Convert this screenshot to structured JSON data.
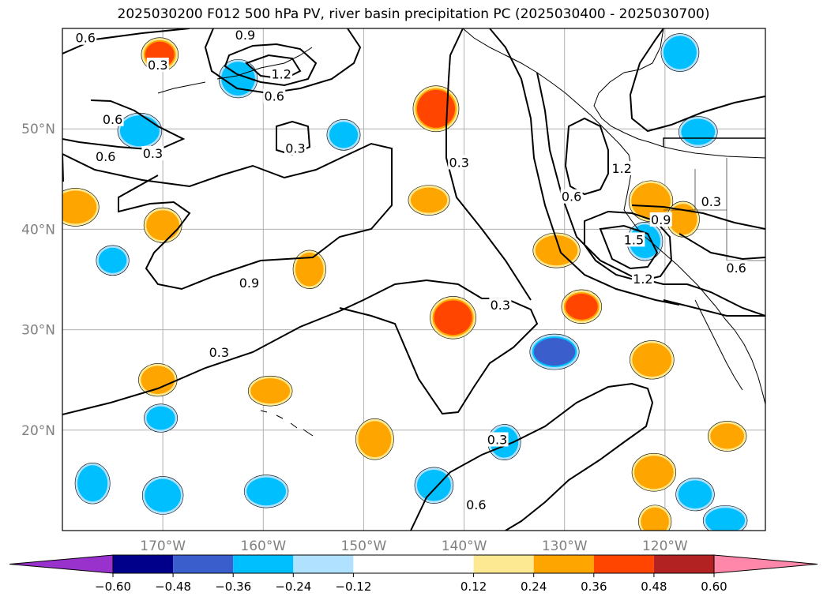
{
  "title": "2025030200 F012 500 hPa PV, river basin precipitation PC (2025030400 - 2025030700)",
  "colors": {
    "map_border": "#000000",
    "grid": "#b0b0b0",
    "tick_label": "#808080",
    "contour": "#000000"
  },
  "chart_data": {
    "type": "heatmap",
    "title": "2025030200 F012 500 hPa PV, river basin precipitation PC (2025030400 - 2025030700)",
    "xlim": [
      -180,
      -110
    ],
    "ylim": [
      10,
      60
    ],
    "x_ticks": [
      -170,
      -160,
      -150,
      -140,
      -130,
      -120
    ],
    "x_tick_labels": [
      "170°W",
      "160°W",
      "150°W",
      "140°W",
      "130°W",
      "120°W"
    ],
    "y_ticks": [
      20,
      30,
      40,
      50
    ],
    "y_tick_labels": [
      "20°N",
      "30°N",
      "40°N",
      "50°N"
    ],
    "grid": true,
    "colorbar": {
      "orientation": "horizontal",
      "extend": "both",
      "boundaries": [
        -0.72,
        -0.6,
        -0.48,
        -0.36,
        -0.24,
        -0.12,
        0.12,
        0.24,
        0.36,
        0.48,
        0.6,
        0.72
      ],
      "colors": [
        "#9932cc",
        "#00008b",
        "#3a5fcd",
        "#00bfff",
        "#b0e2ff",
        "#ffffff",
        "#fde992",
        "#ffa500",
        "#ff4500",
        "#b22222",
        "#ff88aa"
      ],
      "tick_values": [
        -0.6,
        -0.48,
        -0.36,
        -0.24,
        -0.12,
        0.12,
        0.24,
        0.36,
        0.48,
        0.6
      ],
      "tick_labels": [
        "−0.60",
        "−0.48",
        "−0.36",
        "−0.24",
        "−0.12",
        "0.12",
        "0.24",
        "0.36",
        "0.48",
        "0.60"
      ]
    },
    "contour_levels": [
      0.3,
      0.6,
      0.9,
      1.2,
      1.5
    ],
    "contour_labels": [
      {
        "text": "0.6",
        "lon": -177.7,
        "lat": 59.0
      },
      {
        "text": "0.3",
        "lon": -170.5,
        "lat": 56.3
      },
      {
        "text": "0.9",
        "lon": -161.8,
        "lat": 59.3
      },
      {
        "text": "1.2",
        "lon": -158.2,
        "lat": 55.4
      },
      {
        "text": "0.6",
        "lon": -158.9,
        "lat": 53.2
      },
      {
        "text": "0.6",
        "lon": -175.0,
        "lat": 50.9
      },
      {
        "text": "0.6",
        "lon": -175.7,
        "lat": 47.2
      },
      {
        "text": "0.3",
        "lon": -171.0,
        "lat": 47.5
      },
      {
        "text": "0.3",
        "lon": -156.8,
        "lat": 48.0
      },
      {
        "text": "0.3",
        "lon": -140.5,
        "lat": 46.6
      },
      {
        "text": "0.9",
        "lon": -161.4,
        "lat": 34.6
      },
      {
        "text": "0.3",
        "lon": -164.4,
        "lat": 27.7
      },
      {
        "text": "0.3",
        "lon": -136.4,
        "lat": 32.4
      },
      {
        "text": "0.6",
        "lon": -129.3,
        "lat": 43.2
      },
      {
        "text": "1.2",
        "lon": -124.3,
        "lat": 46.0
      },
      {
        "text": "0.9",
        "lon": -120.4,
        "lat": 40.9
      },
      {
        "text": "1.5",
        "lon": -123.1,
        "lat": 38.9
      },
      {
        "text": "1.2",
        "lon": -122.2,
        "lat": 35.0
      },
      {
        "text": "0.3",
        "lon": -115.4,
        "lat": 42.7
      },
      {
        "text": "0.6",
        "lon": -112.9,
        "lat": 36.1
      },
      {
        "text": "0.3",
        "lon": -136.7,
        "lat": 19.0
      },
      {
        "text": "0.6",
        "lon": -138.8,
        "lat": 12.5
      }
    ],
    "precip_pc_cells": [
      {
        "value": 0.4,
        "lon": -170.3,
        "lat": 57.4
      },
      {
        "value": 0.45,
        "lon": -142.8,
        "lat": 52.0
      },
      {
        "value": 0.35,
        "lon": -178.7,
        "lat": 42.2
      },
      {
        "value": 0.35,
        "lon": -170.0,
        "lat": 40.4
      },
      {
        "value": 0.3,
        "lon": -143.5,
        "lat": 42.9
      },
      {
        "value": 0.3,
        "lon": -155.4,
        "lat": 36.0
      },
      {
        "value": 0.45,
        "lon": -141.1,
        "lat": 31.2
      },
      {
        "value": 0.35,
        "lon": -130.8,
        "lat": 37.9
      },
      {
        "value": 0.4,
        "lon": -128.3,
        "lat": 32.3
      },
      {
        "value": 0.35,
        "lon": -121.4,
        "lat": 42.8
      },
      {
        "value": 0.3,
        "lon": -118.2,
        "lat": 41.0
      },
      {
        "value": 0.3,
        "lon": -170.5,
        "lat": 25.0
      },
      {
        "value": 0.3,
        "lon": -159.3,
        "lat": 23.9
      },
      {
        "value": 0.35,
        "lon": -148.9,
        "lat": 19.1
      },
      {
        "value": 0.35,
        "lon": -121.1,
        "lat": 15.8
      },
      {
        "value": 0.3,
        "lon": -121.0,
        "lat": 10.9
      },
      {
        "value": 0.3,
        "lon": -113.8,
        "lat": 19.4
      },
      {
        "value": 0.3,
        "lon": -121.3,
        "lat": 27.0
      },
      {
        "value": -0.35,
        "lon": -118.5,
        "lat": 57.6
      },
      {
        "value": -0.25,
        "lon": -116.7,
        "lat": 49.7
      },
      {
        "value": -0.3,
        "lon": -175.0,
        "lat": 36.9
      },
      {
        "value": -0.3,
        "lon": -162.5,
        "lat": 55.0
      },
      {
        "value": -0.3,
        "lon": -172.3,
        "lat": 49.8
      },
      {
        "value": -0.25,
        "lon": -152.0,
        "lat": 49.4
      },
      {
        "value": -0.45,
        "lon": -131.0,
        "lat": 27.8
      },
      {
        "value": -0.35,
        "lon": -177.0,
        "lat": 14.7
      },
      {
        "value": -0.35,
        "lon": -170.0,
        "lat": 13.5
      },
      {
        "value": -0.3,
        "lon": -159.7,
        "lat": 13.9
      },
      {
        "value": -0.25,
        "lon": -170.2,
        "lat": 21.2
      },
      {
        "value": -0.25,
        "lon": -143.0,
        "lat": 14.5
      },
      {
        "value": -0.3,
        "lon": -136.0,
        "lat": 18.8
      },
      {
        "value": -0.3,
        "lon": -117.0,
        "lat": 13.6
      },
      {
        "value": -0.3,
        "lon": -114.0,
        "lat": 11.0
      },
      {
        "value": -0.3,
        "lon": -122.0,
        "lat": 38.8
      }
    ]
  }
}
